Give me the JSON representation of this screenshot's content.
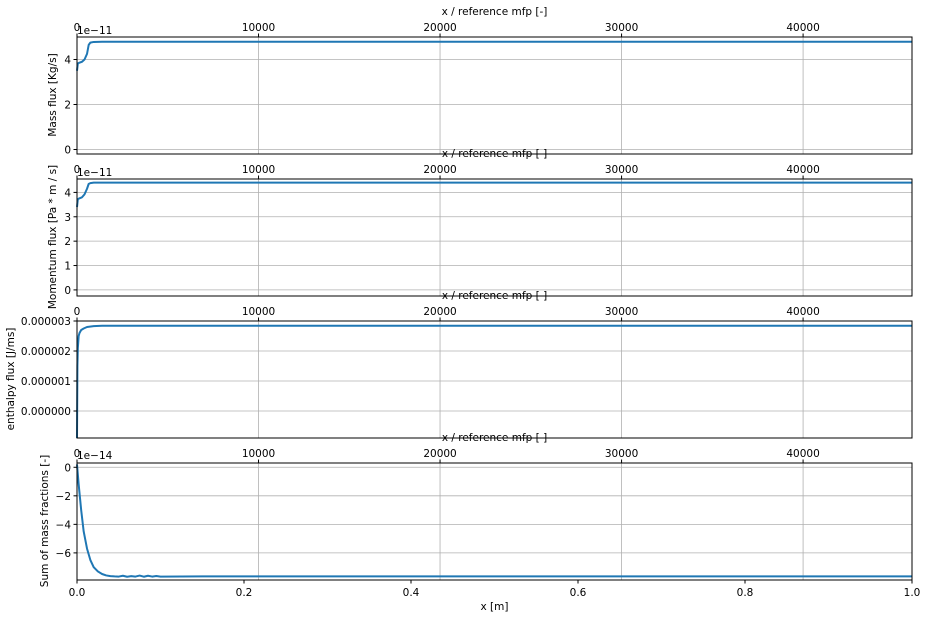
{
  "chart_data": [
    {
      "type": "line",
      "ylabel": "Mass flux [Kg/s]",
      "offset_text": "1e−11",
      "top_xlabel": "x / reference mfp [-]",
      "top_xticks": [
        "0",
        "10000",
        "20000",
        "30000",
        "40000"
      ],
      "yticks": [
        "0",
        "2",
        "4"
      ],
      "ylim": [
        -0.2,
        5.0
      ],
      "grid": true,
      "series": [
        {
          "x": [
            0,
            0.001,
            0.003,
            0.006,
            0.009,
            0.012,
            0.014,
            0.016,
            0.02,
            0.03,
            0.1,
            0.5,
            1.0
          ],
          "y": [
            3.5,
            3.82,
            3.86,
            3.9,
            4.0,
            4.25,
            4.65,
            4.75,
            4.78,
            4.79,
            4.79,
            4.79,
            4.79
          ]
        }
      ]
    },
    {
      "type": "line",
      "ylabel": "Momentum flux [Pa * m / s]",
      "offset_text": "1e−11",
      "top_xlabel": "x / reference mfp [ ]",
      "top_xticks": [
        "0",
        "10000",
        "20000",
        "30000",
        "40000"
      ],
      "yticks": [
        "0",
        "1",
        "2",
        "3",
        "4"
      ],
      "ylim": [
        -0.25,
        4.55
      ],
      "grid": true,
      "series": [
        {
          "x": [
            0,
            0.001,
            0.003,
            0.006,
            0.009,
            0.012,
            0.014,
            0.016,
            0.02,
            0.03,
            0.1,
            0.5,
            1.0
          ],
          "y": [
            3.4,
            3.72,
            3.76,
            3.8,
            3.92,
            4.15,
            4.35,
            4.38,
            4.4,
            4.4,
            4.4,
            4.4,
            4.4
          ]
        }
      ]
    },
    {
      "type": "line",
      "ylabel": "enthalpy flux [J/ms]",
      "top_xlabel": "x / reference mfp [ ]",
      "top_xticks": [
        "0",
        "10000",
        "20000",
        "30000",
        "40000"
      ],
      "yticks": [
        "0.000000",
        "0.000001",
        "0.000002",
        "0.000003"
      ],
      "ylim": [
        -9e-07,
        3e-06
      ],
      "grid": true,
      "series": [
        {
          "x": [
            0,
            0.0005,
            0.001,
            0.002,
            0.003,
            0.005,
            0.008,
            0.012,
            0.02,
            0.03,
            0.1,
            0.5,
            1.0
          ],
          "y": [
            -9e-07,
            1.5e-06,
            2.1e-06,
            2.5e-06,
            2.6e-06,
            2.7e-06,
            2.75e-06,
            2.8e-06,
            2.83e-06,
            2.84e-06,
            2.84e-06,
            2.84e-06,
            2.84e-06
          ]
        }
      ]
    },
    {
      "type": "line",
      "ylabel": "Sum of mass fractions [-]",
      "offset_text": "1e−14",
      "top_xlabel": "x / reference mfp [ ]",
      "top_xticks": [
        "0",
        "10000",
        "20000",
        "30000",
        "40000"
      ],
      "xlabel": "x [m]",
      "yticks": [
        "0",
        "−2",
        "−4",
        "−6"
      ],
      "xticks": [
        "0.0",
        "0.2",
        "0.4",
        "0.6",
        "0.8",
        "1.0"
      ],
      "ylim": [
        -7.9,
        0.3
      ],
      "grid": true,
      "series": [
        {
          "x": [
            0,
            0.002,
            0.005,
            0.008,
            0.012,
            0.016,
            0.02,
            0.025,
            0.03,
            0.035,
            0.04,
            0.045,
            0.05,
            0.055,
            0.06,
            0.065,
            0.07,
            0.075,
            0.08,
            0.085,
            0.09,
            0.095,
            0.1,
            0.15,
            0.2,
            0.3,
            0.5,
            0.7,
            1.0
          ],
          "y": [
            0.2,
            -1.2,
            -3.0,
            -4.5,
            -5.7,
            -6.5,
            -7.0,
            -7.3,
            -7.48,
            -7.58,
            -7.63,
            -7.65,
            -7.66,
            -7.6,
            -7.67,
            -7.63,
            -7.66,
            -7.59,
            -7.67,
            -7.6,
            -7.66,
            -7.62,
            -7.66,
            -7.65,
            -7.65,
            -7.65,
            -7.65,
            -7.65,
            -7.65
          ]
        }
      ]
    }
  ]
}
